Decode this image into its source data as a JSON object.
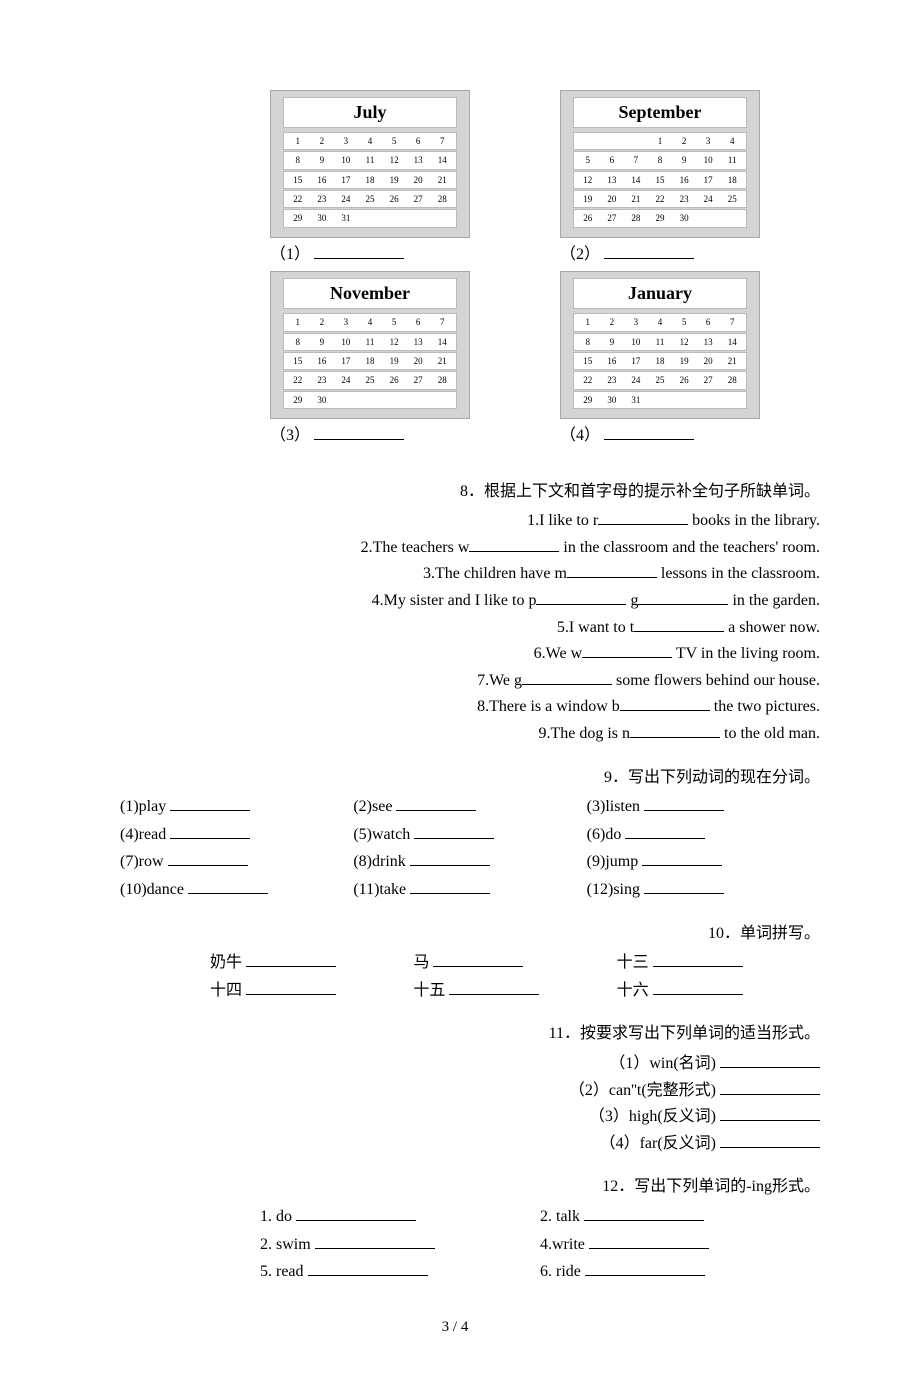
{
  "calendars": [
    {
      "title": "July",
      "label": "（1）",
      "rows": [
        [
          "1",
          "2",
          "3",
          "4",
          "5",
          "6",
          "7"
        ],
        [
          "8",
          "9",
          "10",
          "11",
          "12",
          "13",
          "14"
        ],
        [
          "15",
          "16",
          "17",
          "18",
          "19",
          "20",
          "21"
        ],
        [
          "22",
          "23",
          "24",
          "25",
          "26",
          "27",
          "28"
        ],
        [
          "29",
          "30",
          "31",
          "",
          "",
          "",
          ""
        ]
      ]
    },
    {
      "title": "September",
      "label": "（2）",
      "rows": [
        [
          "",
          "",
          "",
          "1",
          "2",
          "3",
          "4"
        ],
        [
          "5",
          "6",
          "7",
          "8",
          "9",
          "10",
          "11"
        ],
        [
          "12",
          "13",
          "14",
          "15",
          "16",
          "17",
          "18"
        ],
        [
          "19",
          "20",
          "21",
          "22",
          "23",
          "24",
          "25"
        ],
        [
          "26",
          "27",
          "28",
          "29",
          "30",
          "",
          ""
        ]
      ]
    },
    {
      "title": "November",
      "label": "（3）",
      "rows": [
        [
          "1",
          "2",
          "3",
          "4",
          "5",
          "6",
          "7"
        ],
        [
          "8",
          "9",
          "10",
          "11",
          "12",
          "13",
          "14"
        ],
        [
          "15",
          "16",
          "17",
          "18",
          "19",
          "20",
          "21"
        ],
        [
          "22",
          "23",
          "24",
          "25",
          "26",
          "27",
          "28"
        ],
        [
          "29",
          "30",
          "",
          "",
          "",
          "",
          ""
        ]
      ]
    },
    {
      "title": "January",
      "label": "（4）",
      "rows": [
        [
          "1",
          "2",
          "3",
          "4",
          "5",
          "6",
          "7"
        ],
        [
          "8",
          "9",
          "10",
          "11",
          "12",
          "13",
          "14"
        ],
        [
          "15",
          "16",
          "17",
          "18",
          "19",
          "20",
          "21"
        ],
        [
          "22",
          "23",
          "24",
          "25",
          "26",
          "27",
          "28"
        ],
        [
          "29",
          "30",
          "31",
          "",
          "",
          "",
          ""
        ]
      ]
    }
  ],
  "q8": {
    "title": "8．根据上下文和首字母的提示补全句子所缺单词。",
    "lines": [
      {
        "pre": "1.I like to r",
        "post": " books in the library."
      },
      {
        "pre": "2.The teachers w",
        "post": " in the classroom and the teachers' room."
      },
      {
        "pre": "3.The children have m",
        "post": " lessons in the classroom."
      },
      {
        "pre": "4.My sister and I like to p",
        "mid": " g",
        "post": " in the garden."
      },
      {
        "pre": "5.I want to t",
        "post": " a shower now."
      },
      {
        "pre": "6.We w",
        "post": " TV in the living room."
      },
      {
        "pre": "7.We g",
        "post": " some flowers behind our house."
      },
      {
        "pre": "8.There is a window b",
        "post": " the two pictures."
      },
      {
        "pre": "9.The dog is n",
        "post": " to the old man."
      }
    ]
  },
  "q9": {
    "title": "9．写出下列动词的现在分词。",
    "items": [
      "(1)play",
      "(2)see",
      "(3)listen",
      "(4)read",
      "(5)watch",
      "(6)do",
      "(7)row",
      "(8)drink",
      "(9)jump",
      "(10)dance",
      "(11)take",
      "(12)sing"
    ]
  },
  "q10": {
    "title": "10．单词拼写。",
    "items": [
      "奶牛",
      "马",
      "十三",
      "十四",
      "十五",
      "十六"
    ]
  },
  "q11": {
    "title": "11．按要求写出下列单词的适当形式。",
    "items": [
      "（1）win(名词)",
      "（2）can''t(完整形式)",
      "（3）high(反义词)",
      "（4）far(反义词)"
    ]
  },
  "q12": {
    "title": "12．写出下列单词的-ing形式。",
    "items": [
      "1. do",
      "2. talk",
      "2. swim",
      "4.write",
      "5. read",
      "6. ride"
    ]
  },
  "pageNum": "3 / 4"
}
